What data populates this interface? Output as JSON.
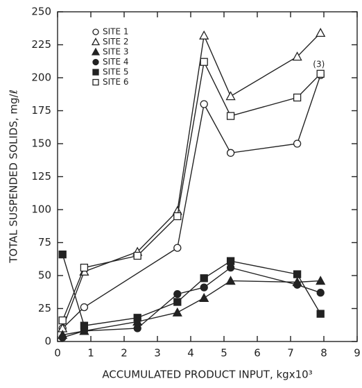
{
  "chart_data": {
    "type": "line",
    "xlabel": "ACCUMULATED PRODUCT INPUT, kgx10³",
    "ylabel": "TOTAL SUSPENDED SOLIDS, mg/ℓ",
    "xlim": [
      0,
      9
    ],
    "xticks": [
      0,
      1,
      2,
      3,
      4,
      5,
      6,
      7,
      8,
      9
    ],
    "ylim": [
      0,
      250
    ],
    "yticks": [
      0,
      25,
      50,
      75,
      100,
      125,
      150,
      175,
      200,
      225,
      250
    ],
    "legend": "upper left",
    "series": [
      {
        "name": "SITE 1",
        "color": "#222222",
        "marker": "circle",
        "filled": false,
        "x": [
          0.15,
          0.8,
          3.6,
          4.4,
          5.2,
          7.2,
          7.9
        ],
        "values": [
          10,
          26,
          71,
          180,
          143,
          150,
          202
        ]
      },
      {
        "name": "SITE 2",
        "color": "#222222",
        "marker": "triangle",
        "filled": false,
        "x": [
          0.15,
          0.8,
          2.4,
          3.6,
          4.4,
          5.2,
          7.2,
          7.9
        ],
        "values": [
          10,
          53,
          68,
          99,
          232,
          186,
          216,
          234
        ]
      },
      {
        "name": "SITE 3",
        "color": "#222222",
        "marker": "triangle",
        "filled": true,
        "x": [
          0.15,
          0.8,
          2.4,
          3.6,
          4.4,
          5.2,
          7.2,
          7.9
        ],
        "values": [
          5,
          8,
          15,
          22,
          33,
          46,
          45,
          46
        ]
      },
      {
        "name": "SITE 4",
        "color": "#222222",
        "marker": "circle",
        "filled": true,
        "x": [
          0.15,
          0.8,
          2.4,
          3.6,
          4.4,
          5.2,
          7.2,
          7.9
        ],
        "values": [
          3,
          8,
          10,
          36,
          41,
          56,
          43,
          37
        ]
      },
      {
        "name": "SITE 5",
        "color": "#222222",
        "marker": "square",
        "filled": true,
        "x": [
          0.15,
          0.8,
          2.4,
          3.6,
          4.4,
          5.2,
          7.2,
          7.9
        ],
        "values": [
          66,
          12,
          18,
          30,
          48,
          61,
          51,
          21
        ]
      },
      {
        "name": "SITE 6",
        "color": "#222222",
        "marker": "square",
        "filled": false,
        "x": [
          0.15,
          0.8,
          2.4,
          3.6,
          4.4,
          5.2,
          7.2,
          7.9
        ],
        "values": [
          16,
          56,
          65,
          95,
          212,
          171,
          185,
          203
        ]
      }
    ],
    "annotations": [
      {
        "text": "(3)",
        "x": 7.85,
        "y": 210
      }
    ]
  }
}
